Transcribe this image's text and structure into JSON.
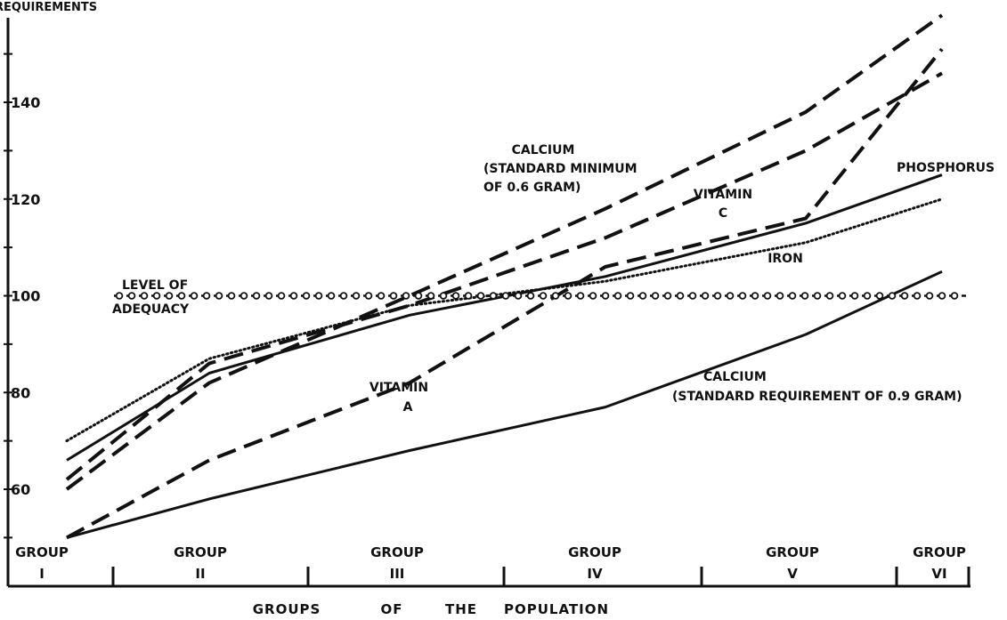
{
  "chart_data": {
    "type": "line",
    "ylabel": "REQUIREMENTS",
    "xlabel": "GROUPS OF THE POPULATION",
    "ylim": [
      50,
      160
    ],
    "yticks": [
      60,
      80,
      100,
      120,
      140
    ],
    "ytick_labels": [
      "60",
      "80",
      "100",
      "120",
      "140"
    ],
    "x": [
      1,
      2,
      3,
      4,
      5,
      6
    ],
    "groups": [
      {
        "word": "GROUP",
        "numeral": "I"
      },
      {
        "word": "GROUP",
        "numeral": "II"
      },
      {
        "word": "GROUP",
        "numeral": "III"
      },
      {
        "word": "GROUP",
        "numeral": "IV"
      },
      {
        "word": "GROUP",
        "numeral": "V"
      },
      {
        "word": "GROUP",
        "numeral": "VI"
      }
    ],
    "series": [
      {
        "key": "calcium_min",
        "style": "dashed",
        "values": [
          60,
          82,
          100,
          118,
          138,
          158
        ]
      },
      {
        "key": "vitamin_c",
        "style": "dashed",
        "values": [
          62,
          86,
          98,
          112,
          130,
          146
        ]
      },
      {
        "key": "vitamin_a",
        "style": "dashed",
        "values": [
          50,
          66,
          82,
          106,
          116,
          151
        ]
      },
      {
        "key": "phosphorus",
        "style": "solid",
        "values": [
          66,
          84,
          96,
          104,
          115,
          125
        ]
      },
      {
        "key": "iron",
        "style": "dotted",
        "values": [
          70,
          87,
          98,
          103,
          111,
          120
        ]
      },
      {
        "key": "calcium_req",
        "style": "solid",
        "values": [
          50,
          58,
          68,
          77,
          92,
          105
        ]
      },
      {
        "key": "adequacy",
        "style": "circles",
        "values": [
          100,
          100,
          100,
          100,
          100,
          100
        ]
      }
    ],
    "annotations": {
      "calcium_min": [
        "CALCIUM",
        "(STANDARD MINIMUM",
        "OF 0.6 GRAM)"
      ],
      "vitamin_c": [
        "VITAMIN",
        "C"
      ],
      "phosphorus": [
        "PHOSPHORUS"
      ],
      "iron": [
        "IRON"
      ],
      "adequacy": [
        "LEVEL OF",
        "ADEQUACY"
      ],
      "vitamin_a": [
        "VITAMIN",
        "A"
      ],
      "calcium_req": [
        "CALCIUM",
        "(STANDARD REQUIREMENT OF 0.9 GRAM)"
      ]
    },
    "colors": {
      "ink": "#111111",
      "background": "#ffffff"
    },
    "grid": false
  }
}
